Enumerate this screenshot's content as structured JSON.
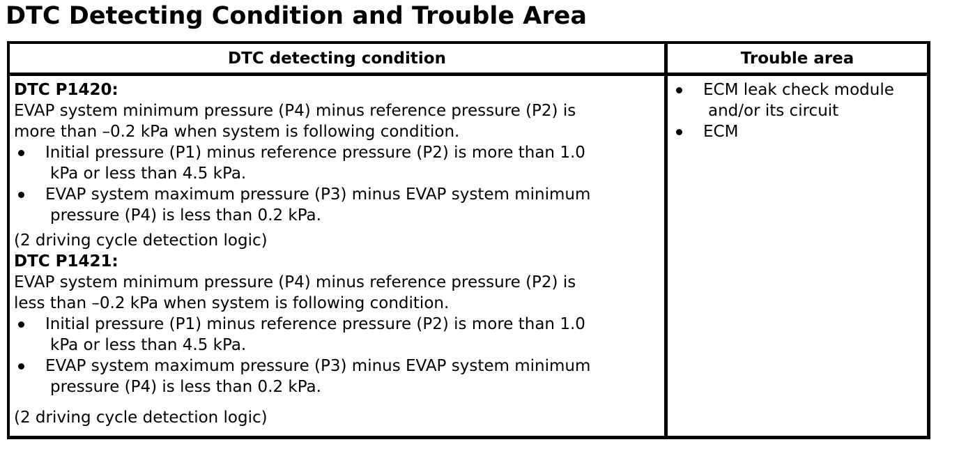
{
  "page_title": "DTC Detecting Condition and Trouble Area",
  "table": {
    "headers": {
      "condition": "DTC detecting condition",
      "trouble_area": "Trouble area"
    },
    "condition_sections": [
      {
        "code": "DTC P1420:",
        "description": "EVAP system minimum pressure (P4) minus reference pressure (P2) is more than –0.2 kPa when system is following condition.",
        "bullets": [
          "Initial pressure (P1) minus reference pressure (P2) is more than 1.0 kPa or less than 4.5 kPa.",
          "EVAP system maximum pressure (P3) minus EVAP system minimum pressure (P4) is less than 0.2 kPa."
        ],
        "note": "(2 driving cycle detection logic)"
      },
      {
        "code": "DTC P1421:",
        "description": "EVAP system minimum pressure (P4) minus reference pressure (P2) is less than –0.2 kPa when system is following condition.",
        "bullets": [
          "Initial pressure (P1) minus reference pressure (P2) is more than 1.0 kPa or less than 4.5 kPa.",
          "EVAP system maximum pressure (P3) minus EVAP system minimum pressure (P4) is less than 0.2 kPa."
        ],
        "note": "(2 driving cycle detection logic)"
      }
    ],
    "trouble_area_items": [
      "ECM leak check module and/or its circuit",
      "ECM"
    ]
  },
  "colors": {
    "text": "#000000",
    "background": "#ffffff",
    "border": "#000000"
  }
}
